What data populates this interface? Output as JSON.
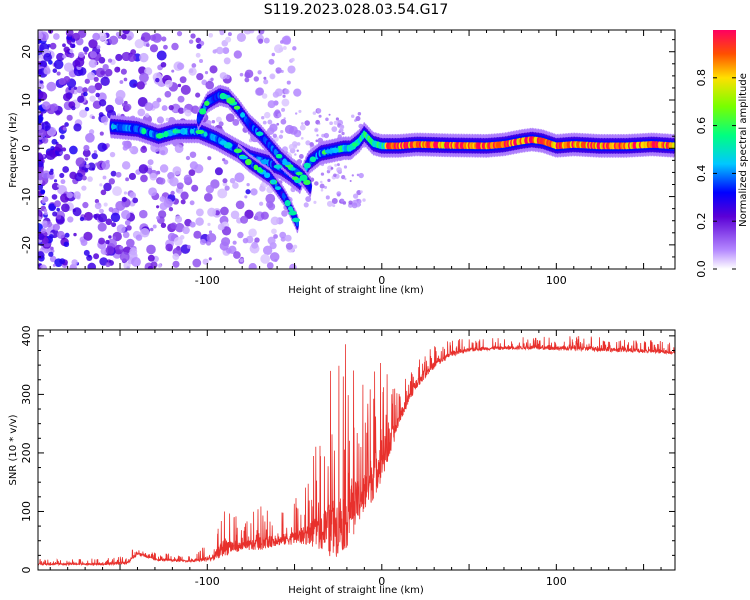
{
  "figure": {
    "title": "S119.2023.028.03.54.G17"
  },
  "chart_data": [
    {
      "type": "heatmap",
      "xlabel": "Height of straight line (km)",
      "ylabel": "Frequency (Hz)",
      "xlim": [
        -197,
        168
      ],
      "ylim": [
        -25,
        24.5
      ],
      "x_ticks": [
        -100,
        0,
        100
      ],
      "y_ticks": [
        -20,
        -10,
        0,
        10,
        20
      ],
      "grid": false,
      "colorbar": {
        "label": "Normalized spectral amplitude",
        "range": [
          0,
          1
        ],
        "ticks": [
          "0.0",
          "0.2",
          "0.4",
          "0.6",
          "0.8"
        ],
        "colors": [
          "#ffffff",
          "#b488ff",
          "#5b00d6",
          "#0000ff",
          "#00c8ff",
          "#00ff80",
          "#78ff00",
          "#ffe000",
          "#ff5000",
          "#ff0060"
        ]
      },
      "track_main": {
        "x": [
          -155,
          -140,
          -128,
          -118,
          -105,
          -95,
          -85,
          -75,
          -65,
          -58,
          -52,
          -47,
          -42,
          -35,
          -28,
          -22,
          -18,
          -13,
          -10,
          -5,
          0,
          10,
          20,
          40,
          60,
          70,
          80,
          86,
          92,
          100,
          110,
          125,
          140,
          155,
          168
        ],
        "y": [
          4.5,
          4,
          2.5,
          3.5,
          3.5,
          2,
          0,
          -2,
          -3,
          -4,
          -5.5,
          -7,
          -3,
          -1,
          -0.5,
          0,
          0,
          1.5,
          3,
          1,
          0.5,
          0.5,
          0.8,
          0.6,
          0.5,
          0.8,
          1.5,
          1.8,
          1.5,
          0.5,
          0.8,
          0.5,
          0.5,
          0.8,
          0.5
        ]
      },
      "track_branch": {
        "x": [
          -105,
          -100,
          -93,
          -88,
          -82,
          -76,
          -70,
          -64,
          -58,
          -52,
          -48,
          -45,
          -43,
          -41
        ],
        "y": [
          6,
          9.5,
          11,
          10.5,
          8,
          5,
          3,
          0.5,
          -2,
          -4,
          -5,
          -6,
          -7,
          -8
        ]
      },
      "track_low": {
        "x": [
          -82,
          -76,
          -70,
          -64,
          -60,
          -56,
          -53,
          -51,
          -49,
          -48
        ],
        "y": [
          -1,
          -3,
          -4.5,
          -6,
          -8,
          -10,
          -12,
          -13.5,
          -15,
          -16
        ]
      }
    },
    {
      "type": "line",
      "xlabel": "Height of straight line (km)",
      "ylabel": "SNR (10 * v/v)",
      "xlim": [
        -197,
        168
      ],
      "ylim": [
        0,
        410
      ],
      "x_ticks": [
        -100,
        0,
        100
      ],
      "y_ticks": [
        0,
        100,
        200,
        300,
        400
      ],
      "grid": false,
      "series": [
        {
          "color": "#e8302c",
          "envelope": {
            "x": [
              -197,
              -160,
              -146,
              -140,
              -130,
              -110,
              -97,
              -90,
              -80,
              -70,
              -60,
              -50,
              -42,
              -35,
              -28,
              -20,
              -12,
              -5,
              0,
              5,
              10,
              20,
              30,
              40,
              55,
              80,
              120,
              168
            ],
            "base": [
              10,
              10,
              12,
              28,
              18,
              15,
              20,
              40,
              40,
              45,
              50,
              55,
              60,
              65,
              70,
              90,
              120,
              160,
              190,
              215,
              260,
              320,
              350,
              370,
              378,
              380,
              378,
              372
            ],
            "spike_max": [
              18,
              20,
              25,
              45,
              30,
              25,
              50,
              130,
              80,
              110,
              100,
              120,
              160,
              250,
              370,
              390,
              320,
              395,
              410,
              330,
              310,
              370,
              385,
              395,
              395,
              398,
              400,
              390
            ]
          }
        }
      ]
    }
  ]
}
